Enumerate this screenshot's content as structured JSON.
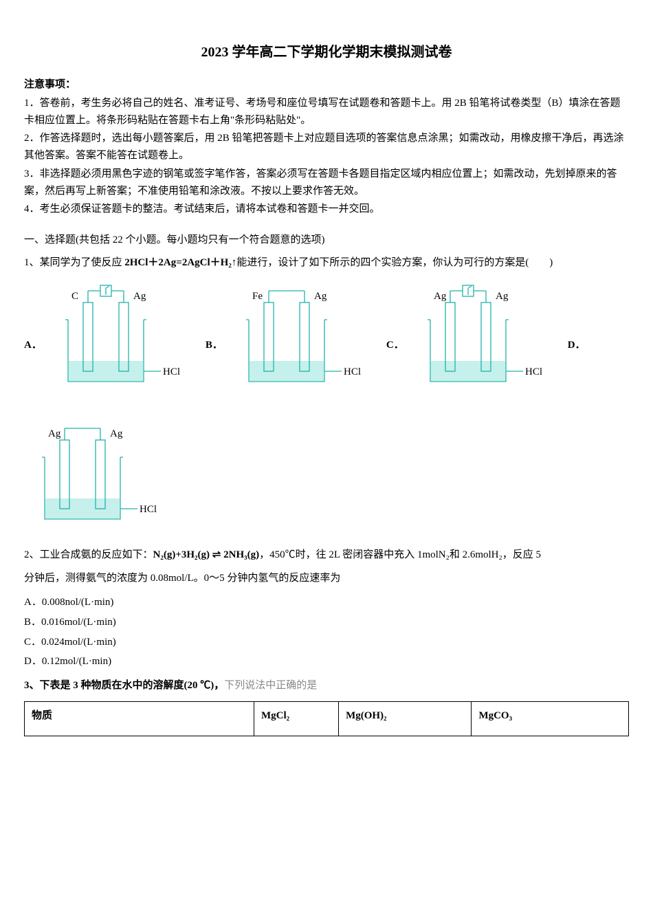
{
  "title": "2023 学年高二下学期化学期末模拟测试卷",
  "notice": {
    "header": "注意事项：",
    "items": [
      "1．答卷前，考生务必将自己的姓名、准考证号、考场号和座位号填写在试题卷和答题卡上。用 2B 铅笔将试卷类型（B）填涂在答题卡相应位置上。将条形码粘贴在答题卡右上角\"条形码粘贴处\"。",
      "2．作答选择题时，选出每小题答案后，用 2B 铅笔把答题卡上对应题目选项的答案信息点涂黑；如需改动，用橡皮擦干净后，再选涂其他答案。答案不能答在试题卷上。",
      "3．非选择题必须用黑色字迹的钢笔或签字笔作答，答案必须写在答题卡各题目指定区域内相应位置上；如需改动，先划掉原来的答案，然后再写上新答案；不准使用铅笔和涂改液。不按以上要求作答无效。",
      "4．考生必须保证答题卡的整洁。考试结束后，请将本试卷和答题卡一并交回。"
    ]
  },
  "section1": "一、选择题(共包括 22 个小题。每小题均只有一个符合题意的选项)",
  "q1": {
    "text_prefix": "1、某同学为了使反应 ",
    "equation": "2HCl＋2Ag=2AgCl＋H₂↑",
    "text_suffix": "能进行，设计了如下所示的四个实验方案，你认为可行的方案是(　　)",
    "options": {
      "A": {
        "label": "A．",
        "left": "C",
        "right": "Ag",
        "sol": "HCl",
        "type": "voltmeter"
      },
      "B": {
        "label": "B．",
        "left": "Fe",
        "right": "Ag",
        "sol": "HCl",
        "type": "wire"
      },
      "C": {
        "label": "C．",
        "left": "Ag",
        "right": "Ag",
        "sol": "HCl",
        "type": "voltmeter"
      },
      "D": {
        "label": "D．",
        "left": "Ag",
        "right": "Ag",
        "sol": "HCl",
        "type": "wire"
      }
    }
  },
  "q2": {
    "text_prefix": "2、工业合成氨的反应如下：",
    "equation": "N₂(g)+3H₂(g) ⇌ 2NH₃(g)",
    "text_mid": "，450℃时，往 2L 密闭容器中充入 1molN₂和 2.6molH₂，反应 5",
    "text_line2": "分钟后，测得氨气的浓度为 0.08mol/L。0～5 分钟内氢气的反应速率为",
    "options": {
      "A": "A．0.008nol/(L·min)",
      "B": "B．0.016mol/(L·min)",
      "C": "C．0.024mol/(L·min)",
      "D": "D．0.12mol/(L·min)"
    }
  },
  "q3": {
    "text_bold": "3、下表是 3 种物质在水中的溶解度(20 ℃)，",
    "text_faded": "下列说法中正确的是",
    "table": {
      "headers": [
        "物质",
        "MgCl₂",
        "Mg(OH)₂",
        "MgCO₃"
      ]
    }
  },
  "diagram_style": {
    "stroke": "#20b2aa",
    "stroke_width": 1.3,
    "text_fill": "#000000",
    "liquid_fill": "#c5f0ec",
    "label_font": "Times New Roman",
    "label_size": 15
  }
}
